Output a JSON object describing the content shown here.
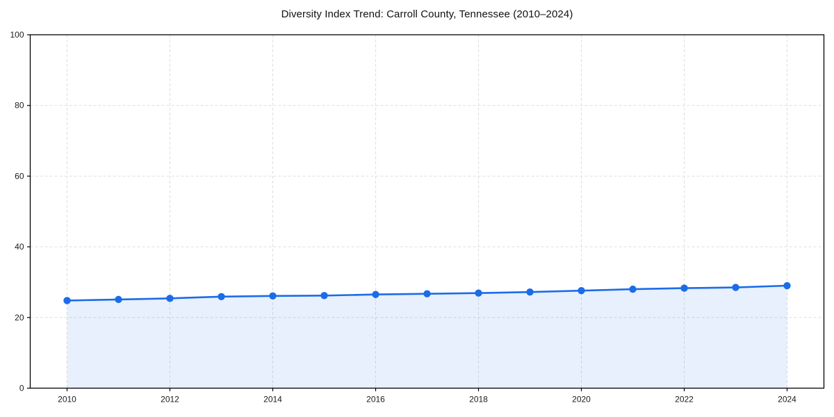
{
  "chart_data": {
    "type": "area",
    "title": "Diversity Index Trend: Carroll County, Tennessee (2010–2024)",
    "x": [
      2010,
      2011,
      2012,
      2013,
      2014,
      2015,
      2016,
      2017,
      2018,
      2019,
      2020,
      2021,
      2022,
      2023,
      2024
    ],
    "series": [
      {
        "name": "Diversity Index",
        "values": [
          24.8,
          25.1,
          25.4,
          25.9,
          26.1,
          26.2,
          26.5,
          26.7,
          26.9,
          27.2,
          27.6,
          28.0,
          28.3,
          28.5,
          29.0
        ]
      }
    ],
    "xlabel": "",
    "ylabel": "",
    "ylim": [
      0,
      100
    ],
    "yticks": [
      0,
      20,
      40,
      60,
      80,
      100
    ],
    "xticks": [
      2010,
      2012,
      2014,
      2016,
      2018,
      2020,
      2022,
      2024
    ],
    "grid": true,
    "grid_style": "dashed",
    "legend": "none",
    "marker": "circle",
    "colors": {
      "line": "#1b6ce8",
      "marker": "#1b6ce8",
      "fill": "rgba(27,108,232,0.10)",
      "grid": "#dedede",
      "spine": "#000000",
      "text": "#1a1a1a",
      "background": "#ffffff"
    }
  }
}
